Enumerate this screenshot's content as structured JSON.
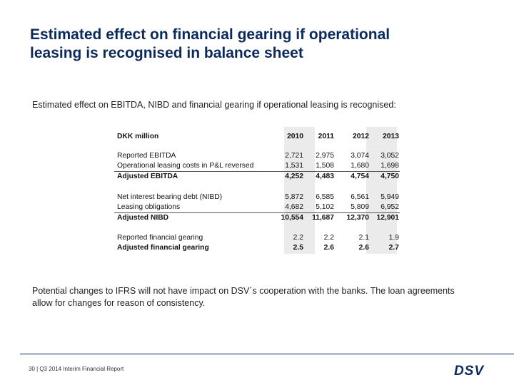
{
  "slide": {
    "title_line1": "Estimated effect on financial gearing if operational",
    "title_line2": "leasing is recognised in balance sheet",
    "intro": "Estimated effect on EBITDA, NIBD and financial gearing if operational leasing is recognised:",
    "note": "Potential changes to IFRS will not have impact on DSV´s cooperation with the banks. The loan agreements allow for changes for reason of consistency."
  },
  "table": {
    "header": {
      "label": "DKK million",
      "years": [
        "2010",
        "2011",
        "2012",
        "2013"
      ]
    },
    "rows": [
      {
        "label": "Reported EBITDA",
        "values": [
          "2,721",
          "2,975",
          "3,074",
          "3,052"
        ]
      },
      {
        "label": "Operational leasing costs in P&L reversed",
        "values": [
          "1,531",
          "1,508",
          "1,680",
          "1,698"
        ]
      },
      {
        "label": "Adjusted EBITDA",
        "values": [
          "4,252",
          "4,483",
          "4,754",
          "4,750"
        ]
      },
      {
        "label": "Net interest bearing debt (NIBD)",
        "values": [
          "5,872",
          "6,585",
          "6,561",
          "5,949"
        ]
      },
      {
        "label": "Leasing obligations",
        "values": [
          "4,682",
          "5,102",
          "5,809",
          "6,952"
        ]
      },
      {
        "label": "Adjusted NIBD",
        "values": [
          "10,554",
          "11,687",
          "12,370",
          "12,901"
        ]
      },
      {
        "label": "Reported financial gearing",
        "values": [
          "2.2",
          "2.2",
          "2.1",
          "1.9"
        ]
      },
      {
        "label": "Adjusted financial gearing",
        "values": [
          "2.5",
          "2.6",
          "2.6",
          "2.7"
        ]
      }
    ]
  },
  "footer": {
    "text": "30 | Q3 2014 Interim Financial Report",
    "logo_text": "DSV",
    "brand_color": "#0b2a5b"
  }
}
